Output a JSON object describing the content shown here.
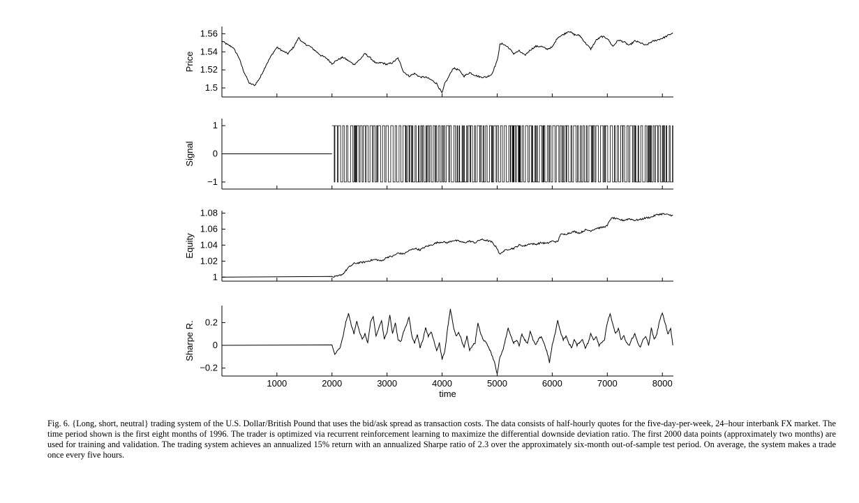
{
  "caption": "Fig. 6.    {Long, short, neutral} trading system of the U.S. Dollar/British Pound that uses the bid/ask spread as transaction costs. The data consists of half-hourly quotes for the five-day-per-week, 24–hour interbank FX market. The time period shown is the first eight months of 1996. The trader is optimized via recurrent reinforcement learning to maximize the differential downside deviation ratio. The first 2000 data points (approximately two months) are used for training and validation. The trading system achieves an annualized 15% return with an annualized Sharpe ratio of 2.3 over the approximately six-month out-of-sample test period. On average, the system makes a trade once every five hours.",
  "chart_data": [
    {
      "type": "line",
      "id": "price",
      "ylabel": "Price",
      "xlim": [
        1,
        8200
      ],
      "ylim": [
        1.49,
        1.568
      ],
      "yticks": [
        1.5,
        1.52,
        1.54,
        1.56
      ],
      "ytick_labels": [
        "1.5",
        "1.52",
        "1.54",
        "1.56"
      ],
      "xticks": [
        1000,
        2000,
        3000,
        4000,
        5000,
        6000,
        7000,
        8000
      ],
      "series": [
        {
          "x": [
            1,
            100,
            200,
            300,
            400,
            500,
            600,
            700,
            800,
            900,
            1000,
            1100,
            1200,
            1300,
            1400,
            1450,
            1500,
            1600,
            1700,
            1800,
            1900,
            2000,
            2100,
            2200,
            2300,
            2400,
            2500,
            2600,
            2700,
            2800,
            2900,
            3000,
            3100,
            3200,
            3300,
            3400,
            3500,
            3600,
            3700,
            3800,
            3900,
            4000,
            4050,
            4100,
            4200,
            4300,
            4400,
            4500,
            4600,
            4700,
            4800,
            4900,
            5000,
            5050,
            5100,
            5200,
            5300,
            5400,
            5500,
            5600,
            5700,
            5800,
            5900,
            6000,
            6100,
            6200,
            6300,
            6400,
            6500,
            6600,
            6700,
            6800,
            6900,
            7000,
            7100,
            7200,
            7300,
            7400,
            7500,
            7600,
            7700,
            7800,
            7900,
            8000,
            8100,
            8190
          ],
          "values": [
            1.552,
            1.548,
            1.545,
            1.535,
            1.518,
            1.505,
            1.503,
            1.512,
            1.525,
            1.536,
            1.545,
            1.541,
            1.538,
            1.545,
            1.556,
            1.551,
            1.549,
            1.546,
            1.541,
            1.536,
            1.533,
            1.527,
            1.531,
            1.534,
            1.53,
            1.526,
            1.531,
            1.538,
            1.533,
            1.527,
            1.528,
            1.526,
            1.528,
            1.533,
            1.518,
            1.513,
            1.516,
            1.512,
            1.512,
            1.509,
            1.505,
            1.494,
            1.505,
            1.51,
            1.522,
            1.52,
            1.513,
            1.517,
            1.514,
            1.512,
            1.512,
            1.515,
            1.53,
            1.548,
            1.549,
            1.545,
            1.538,
            1.541,
            1.536,
            1.542,
            1.546,
            1.546,
            1.543,
            1.545,
            1.556,
            1.559,
            1.563,
            1.559,
            1.558,
            1.55,
            1.543,
            1.553,
            1.557,
            1.555,
            1.546,
            1.553,
            1.551,
            1.547,
            1.552,
            1.55,
            1.547,
            1.551,
            1.553,
            1.555,
            1.558,
            1.561
          ]
        }
      ]
    },
    {
      "type": "line",
      "id": "signal",
      "ylabel": "Signal",
      "xlim": [
        1,
        8200
      ],
      "ylim": [
        -1.25,
        1.25
      ],
      "yticks": [
        -1,
        0,
        1
      ],
      "ytick_labels": [
        "−1",
        "0",
        "1"
      ],
      "xticks": [
        1000,
        2000,
        3000,
        4000,
        5000,
        6000,
        7000,
        8000
      ],
      "series": [
        {
          "x": [
            1,
            2000
          ],
          "values": [
            0,
            0
          ]
        }
      ],
      "switching_region": {
        "start": 2000,
        "end": 8200,
        "levels": [
          -1,
          1
        ]
      }
    },
    {
      "type": "line",
      "id": "equity",
      "ylabel": "Equity",
      "xlim": [
        1,
        8200
      ],
      "ylim": [
        0.995,
        1.083
      ],
      "yticks": [
        1,
        1.02,
        1.04,
        1.06,
        1.08
      ],
      "ytick_labels": [
        "1",
        "1.02",
        "1.04",
        "1.06",
        "1.08"
      ],
      "xticks": [
        1000,
        2000,
        3000,
        4000,
        5000,
        6000,
        7000,
        8000
      ],
      "series": [
        {
          "x": [
            1,
            2000,
            2100,
            2200,
            2300,
            2400,
            2500,
            2600,
            2700,
            2800,
            2900,
            3000,
            3100,
            3200,
            3300,
            3400,
            3500,
            3600,
            3700,
            3800,
            3900,
            4000,
            4100,
            4200,
            4300,
            4400,
            4500,
            4600,
            4700,
            4800,
            4900,
            5000,
            5050,
            5100,
            5200,
            5300,
            5400,
            5500,
            5600,
            5700,
            5800,
            5900,
            6000,
            6100,
            6150,
            6200,
            6300,
            6400,
            6500,
            6600,
            6700,
            6800,
            6900,
            7000,
            7050,
            7100,
            7200,
            7300,
            7400,
            7500,
            7600,
            7700,
            7800,
            7900,
            8000,
            8100,
            8190
          ],
          "values": [
            1.0,
            1.0,
            1.001,
            1.004,
            1.012,
            1.017,
            1.018,
            1.019,
            1.021,
            1.022,
            1.02,
            1.025,
            1.026,
            1.03,
            1.029,
            1.033,
            1.036,
            1.034,
            1.038,
            1.04,
            1.043,
            1.044,
            1.043,
            1.046,
            1.045,
            1.043,
            1.045,
            1.043,
            1.047,
            1.046,
            1.044,
            1.036,
            1.028,
            1.032,
            1.035,
            1.036,
            1.04,
            1.039,
            1.042,
            1.041,
            1.043,
            1.042,
            1.045,
            1.044,
            1.054,
            1.053,
            1.055,
            1.057,
            1.055,
            1.059,
            1.058,
            1.061,
            1.062,
            1.064,
            1.072,
            1.074,
            1.072,
            1.071,
            1.073,
            1.071,
            1.072,
            1.074,
            1.075,
            1.078,
            1.079,
            1.078,
            1.077
          ]
        }
      ]
    },
    {
      "type": "line",
      "id": "sharpe",
      "ylabel": "Sharpe R.",
      "xlabel": "time",
      "xlim": [
        1,
        8200
      ],
      "ylim": [
        -0.27,
        0.35
      ],
      "yticks": [
        -0.2,
        0,
        0.2
      ],
      "ytick_labels": [
        "−0.2",
        "0",
        "0.2"
      ],
      "xticks": [
        1000,
        2000,
        3000,
        4000,
        5000,
        6000,
        7000,
        8000
      ],
      "xtick_labels": [
        "1000",
        "2000",
        "3000",
        "4000",
        "5000",
        "6000",
        "7000",
        "8000"
      ],
      "series": [
        {
          "x": [
            1,
            2000,
            2050,
            2100,
            2150,
            2200,
            2250,
            2300,
            2350,
            2400,
            2450,
            2500,
            2550,
            2600,
            2650,
            2700,
            2750,
            2800,
            2850,
            2900,
            2950,
            3000,
            3050,
            3100,
            3150,
            3200,
            3250,
            3300,
            3350,
            3400,
            3450,
            3500,
            3550,
            3600,
            3650,
            3700,
            3750,
            3800,
            3850,
            3900,
            3950,
            4000,
            4050,
            4100,
            4150,
            4200,
            4250,
            4300,
            4350,
            4400,
            4450,
            4500,
            4550,
            4600,
            4650,
            4700,
            4750,
            4800,
            4850,
            4900,
            4950,
            5000,
            5050,
            5100,
            5150,
            5200,
            5250,
            5300,
            5350,
            5400,
            5450,
            5500,
            5550,
            5600,
            5650,
            5700,
            5750,
            5800,
            5850,
            5900,
            5950,
            6000,
            6050,
            6100,
            6150,
            6200,
            6250,
            6300,
            6350,
            6400,
            6450,
            6500,
            6550,
            6600,
            6650,
            6700,
            6750,
            6800,
            6850,
            6900,
            6950,
            7000,
            7050,
            7100,
            7150,
            7200,
            7250,
            7300,
            7350,
            7400,
            7450,
            7500,
            7550,
            7600,
            7650,
            7700,
            7750,
            7800,
            7850,
            7900,
            7950,
            8000,
            8050,
            8100,
            8150,
            8190
          ],
          "values": [
            0,
            0,
            -0.08,
            -0.05,
            -0.02,
            0.08,
            0.2,
            0.28,
            0.18,
            0.1,
            0.22,
            0.12,
            0.05,
            0.1,
            0.02,
            0.2,
            0.25,
            0.08,
            0.15,
            0.22,
            0.05,
            0.12,
            0.27,
            0.1,
            0.2,
            0.05,
            0.03,
            0.12,
            0.18,
            0.25,
            0.08,
            0.02,
            0.1,
            -0.02,
            0.05,
            0.15,
            0.08,
            0.12,
            0.05,
            -0.05,
            0.02,
            -0.12,
            -0.05,
            0.15,
            0.32,
            0.18,
            0.08,
            0.12,
            0.05,
            -0.02,
            0.08,
            -0.05,
            0.0,
            0.02,
            0.2,
            0.1,
            0.05,
            0.02,
            -0.02,
            -0.08,
            -0.15,
            -0.25,
            -0.1,
            -0.05,
            0.05,
            0.15,
            0.08,
            0.02,
            0.05,
            0.0,
            0.1,
            0.05,
            0.02,
            0.12,
            0.05,
            0.0,
            0.05,
            0.08,
            0.02,
            -0.05,
            -0.15,
            0.0,
            0.1,
            0.22,
            0.12,
            0.05,
            0.08,
            0.02,
            -0.02,
            0.05,
            0.0,
            0.03,
            0.05,
            -0.02,
            0.02,
            0.1,
            0.05,
            0.08,
            0.0,
            0.03,
            0.05,
            0.2,
            0.28,
            0.18,
            0.1,
            0.15,
            0.05,
            0.08,
            0.02,
            0.0,
            0.06,
            0.1,
            0.03,
            -0.02,
            0.05,
            0.08,
            0.0,
            0.15,
            0.05,
            0.1,
            0.22,
            0.28,
            0.2,
            0.1,
            0.15,
            0.0
          ]
        }
      ]
    }
  ]
}
